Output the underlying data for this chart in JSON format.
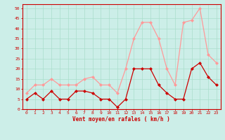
{
  "x": [
    0,
    1,
    2,
    3,
    4,
    5,
    6,
    7,
    8,
    9,
    10,
    11,
    12,
    13,
    14,
    15,
    16,
    17,
    18,
    19,
    20,
    21,
    22,
    23
  ],
  "wind_avg": [
    5,
    8,
    5,
    9,
    5,
    5,
    9,
    9,
    8,
    5,
    5,
    1,
    5,
    20,
    20,
    20,
    12,
    8,
    5,
    5,
    20,
    23,
    16,
    12
  ],
  "wind_gust": [
    8,
    12,
    12,
    15,
    12,
    12,
    12,
    15,
    16,
    12,
    12,
    8,
    20,
    35,
    43,
    43,
    35,
    20,
    12,
    43,
    44,
    50,
    27,
    23
  ],
  "bg_color": "#cceee8",
  "grid_color": "#aaddcc",
  "avg_color": "#cc0000",
  "gust_color": "#ff9999",
  "xlabel": "Vent moyen/en rafales ( km/h )",
  "ylim": [
    0,
    52
  ],
  "yticks": [
    0,
    5,
    10,
    15,
    20,
    25,
    30,
    35,
    40,
    45,
    50
  ],
  "xticks": [
    0,
    1,
    2,
    3,
    4,
    5,
    6,
    7,
    8,
    9,
    10,
    11,
    12,
    13,
    14,
    15,
    16,
    17,
    18,
    19,
    20,
    21,
    22,
    23
  ],
  "marker": "D",
  "marker_size": 2,
  "linewidth": 0.9
}
